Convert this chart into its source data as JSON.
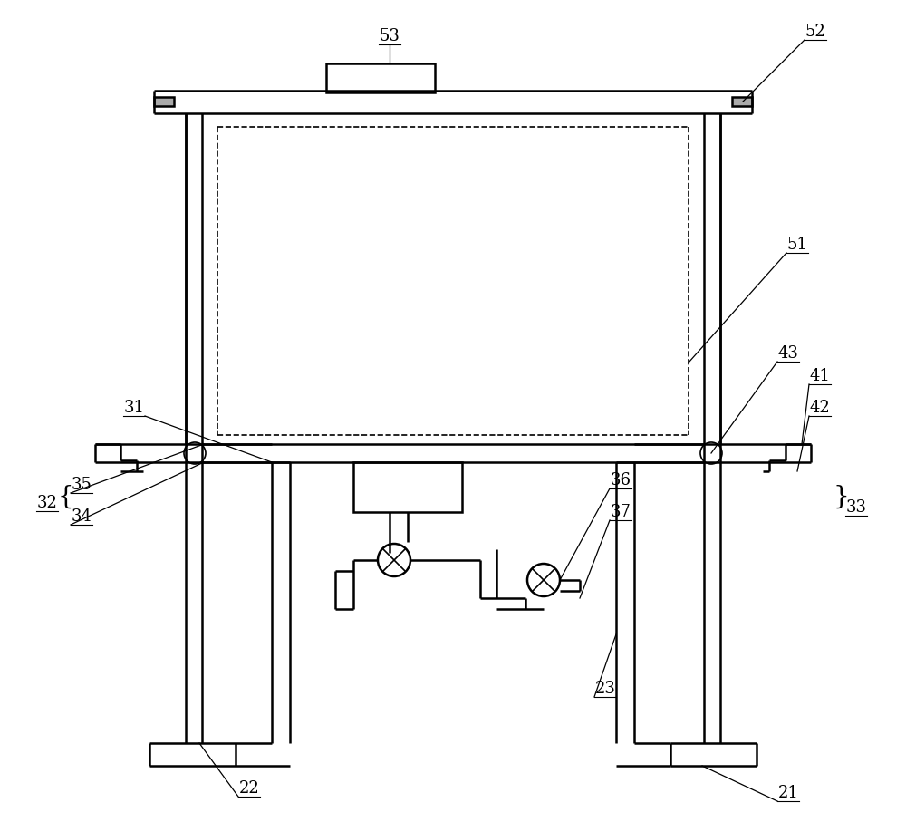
{
  "bg_color": "#ffffff",
  "line_color": "#000000",
  "fig_width": 10.0,
  "fig_height": 9.07,
  "lw_main": 1.8,
  "lw_thin": 1.2
}
